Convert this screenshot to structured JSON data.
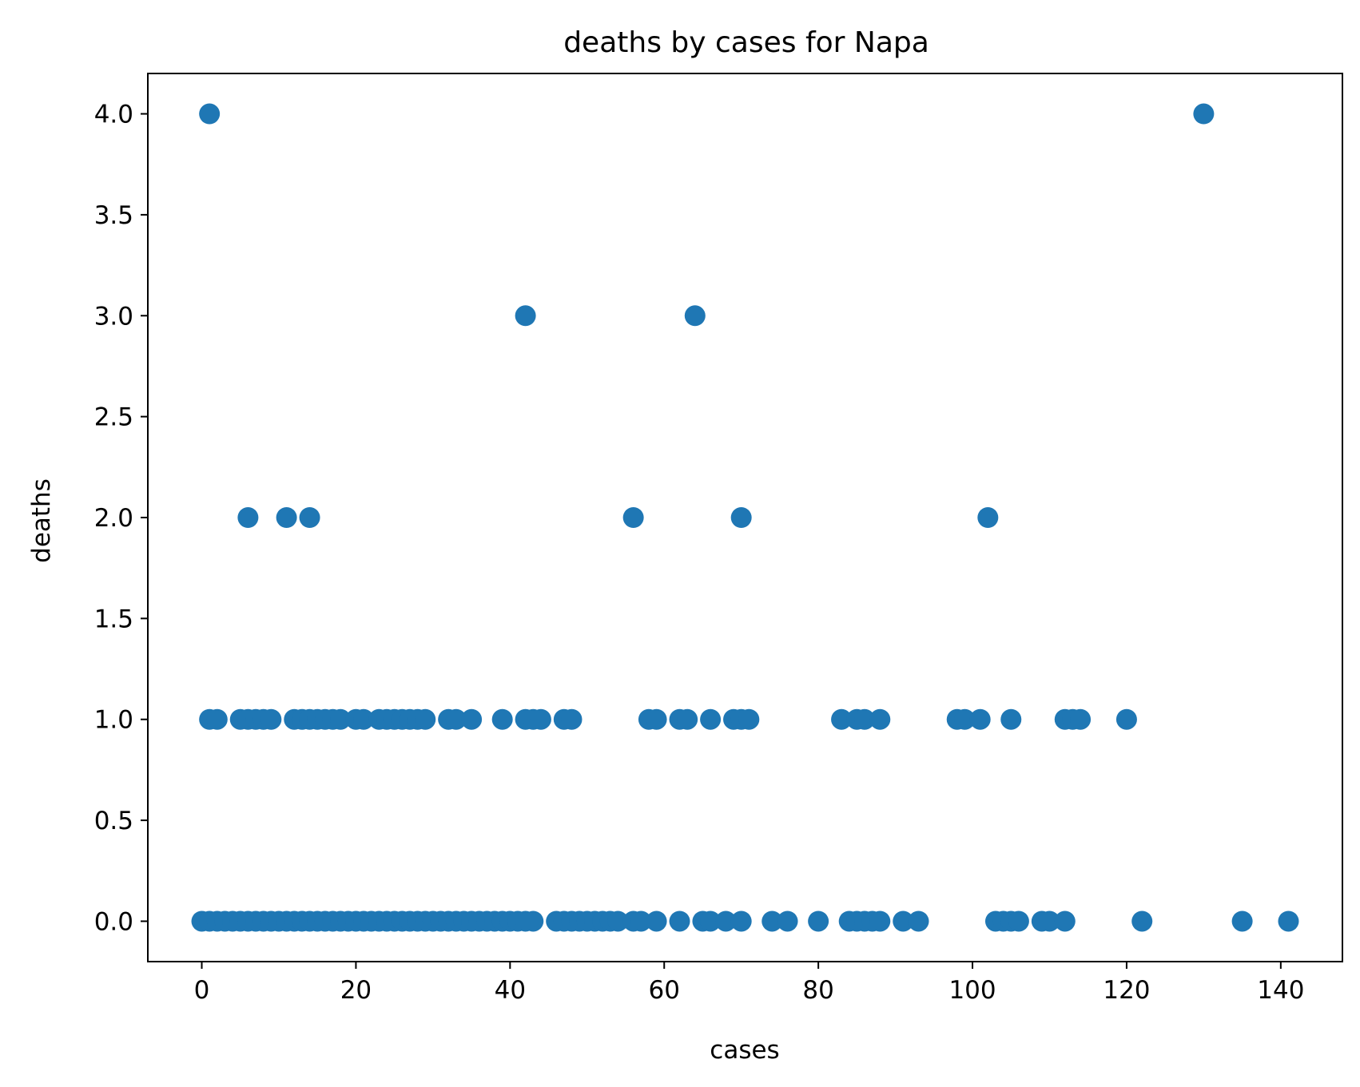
{
  "chart_data": {
    "type": "scatter",
    "title": "deaths by cases for Napa",
    "xlabel": "cases",
    "ylabel": "deaths",
    "xlim": [
      -7,
      148
    ],
    "ylim": [
      -0.2,
      4.2
    ],
    "xticks": [
      0,
      20,
      40,
      60,
      80,
      100,
      120,
      140
    ],
    "xtick_labels": [
      "0",
      "20",
      "40",
      "60",
      "80",
      "100",
      "120",
      "140"
    ],
    "yticks": [
      0.0,
      0.5,
      1.0,
      1.5,
      2.0,
      2.5,
      3.0,
      3.5,
      4.0
    ],
    "ytick_labels": [
      "0.0",
      "0.5",
      "1.0",
      "1.5",
      "2.0",
      "2.5",
      "3.0",
      "3.5",
      "4.0"
    ],
    "grid": false,
    "marker_color": "#1f77b4",
    "series": [
      {
        "points": [
          [
            1,
            4
          ],
          [
            42,
            3
          ],
          [
            64,
            3
          ],
          [
            130,
            4
          ],
          [
            6,
            2
          ],
          [
            11,
            2
          ],
          [
            14,
            2
          ],
          [
            56,
            2
          ],
          [
            70,
            2
          ],
          [
            102,
            2
          ],
          [
            1,
            1
          ],
          [
            2,
            1
          ],
          [
            5,
            1
          ],
          [
            6,
            1
          ],
          [
            7,
            1
          ],
          [
            8,
            1
          ],
          [
            9,
            1
          ],
          [
            12,
            1
          ],
          [
            13,
            1
          ],
          [
            14,
            1
          ],
          [
            15,
            1
          ],
          [
            16,
            1
          ],
          [
            17,
            1
          ],
          [
            18,
            1
          ],
          [
            20,
            1
          ],
          [
            21,
            1
          ],
          [
            23,
            1
          ],
          [
            24,
            1
          ],
          [
            25,
            1
          ],
          [
            26,
            1
          ],
          [
            27,
            1
          ],
          [
            28,
            1
          ],
          [
            29,
            1
          ],
          [
            32,
            1
          ],
          [
            33,
            1
          ],
          [
            35,
            1
          ],
          [
            39,
            1
          ],
          [
            42,
            1
          ],
          [
            43,
            1
          ],
          [
            44,
            1
          ],
          [
            47,
            1
          ],
          [
            48,
            1
          ],
          [
            58,
            1
          ],
          [
            59,
            1
          ],
          [
            62,
            1
          ],
          [
            63,
            1
          ],
          [
            66,
            1
          ],
          [
            69,
            1
          ],
          [
            70,
            1
          ],
          [
            71,
            1
          ],
          [
            83,
            1
          ],
          [
            85,
            1
          ],
          [
            86,
            1
          ],
          [
            88,
            1
          ],
          [
            98,
            1
          ],
          [
            99,
            1
          ],
          [
            101,
            1
          ],
          [
            105,
            1
          ],
          [
            112,
            1
          ],
          [
            113,
            1
          ],
          [
            114,
            1
          ],
          [
            120,
            1
          ],
          [
            0,
            0
          ],
          [
            1,
            0
          ],
          [
            2,
            0
          ],
          [
            3,
            0
          ],
          [
            4,
            0
          ],
          [
            5,
            0
          ],
          [
            6,
            0
          ],
          [
            7,
            0
          ],
          [
            8,
            0
          ],
          [
            9,
            0
          ],
          [
            10,
            0
          ],
          [
            11,
            0
          ],
          [
            12,
            0
          ],
          [
            13,
            0
          ],
          [
            14,
            0
          ],
          [
            15,
            0
          ],
          [
            16,
            0
          ],
          [
            17,
            0
          ],
          [
            18,
            0
          ],
          [
            19,
            0
          ],
          [
            20,
            0
          ],
          [
            21,
            0
          ],
          [
            22,
            0
          ],
          [
            23,
            0
          ],
          [
            24,
            0
          ],
          [
            25,
            0
          ],
          [
            26,
            0
          ],
          [
            27,
            0
          ],
          [
            28,
            0
          ],
          [
            29,
            0
          ],
          [
            30,
            0
          ],
          [
            31,
            0
          ],
          [
            32,
            0
          ],
          [
            33,
            0
          ],
          [
            34,
            0
          ],
          [
            35,
            0
          ],
          [
            36,
            0
          ],
          [
            37,
            0
          ],
          [
            38,
            0
          ],
          [
            39,
            0
          ],
          [
            40,
            0
          ],
          [
            41,
            0
          ],
          [
            42,
            0
          ],
          [
            43,
            0
          ],
          [
            46,
            0
          ],
          [
            47,
            0
          ],
          [
            48,
            0
          ],
          [
            49,
            0
          ],
          [
            50,
            0
          ],
          [
            51,
            0
          ],
          [
            52,
            0
          ],
          [
            53,
            0
          ],
          [
            54,
            0
          ],
          [
            56,
            0
          ],
          [
            57,
            0
          ],
          [
            59,
            0
          ],
          [
            62,
            0
          ],
          [
            65,
            0
          ],
          [
            66,
            0
          ],
          [
            68,
            0
          ],
          [
            70,
            0
          ],
          [
            74,
            0
          ],
          [
            76,
            0
          ],
          [
            80,
            0
          ],
          [
            84,
            0
          ],
          [
            85,
            0
          ],
          [
            86,
            0
          ],
          [
            87,
            0
          ],
          [
            88,
            0
          ],
          [
            91,
            0
          ],
          [
            93,
            0
          ],
          [
            103,
            0
          ],
          [
            104,
            0
          ],
          [
            105,
            0
          ],
          [
            106,
            0
          ],
          [
            109,
            0
          ],
          [
            110,
            0
          ],
          [
            112,
            0
          ],
          [
            122,
            0
          ],
          [
            135,
            0
          ],
          [
            141,
            0
          ]
        ]
      }
    ]
  }
}
